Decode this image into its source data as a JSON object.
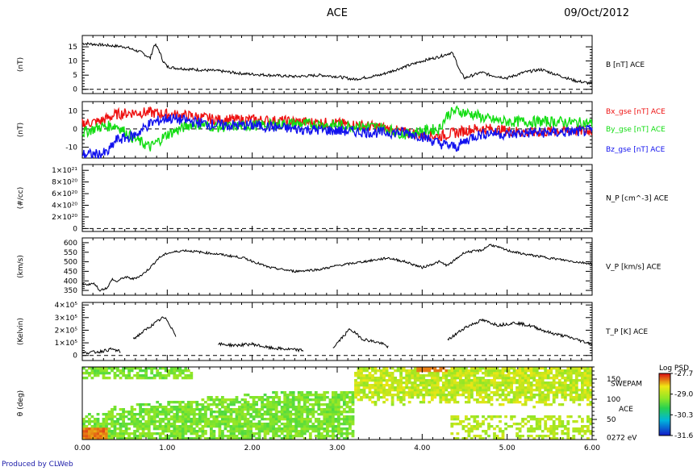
{
  "header": {
    "mission": "ACE",
    "date": "09/Oct/2012"
  },
  "credit": "Produced by CLWeb",
  "colors": {
    "bx": "#ee1111",
    "by": "#11dd11",
    "bz": "#1111ee",
    "trace": "#000000"
  },
  "chart_data": [
    {
      "type": "line",
      "ylabel": "(nT)",
      "right_label": "B [nT] ACE",
      "yticks": [
        "0",
        "5",
        "10",
        "15"
      ],
      "ylim": [
        -1.5,
        19
      ],
      "xlim": [
        0,
        6
      ],
      "dashed_zero": true,
      "series": [
        {
          "x": [
            0,
            0.1,
            0.3,
            0.5,
            0.6,
            0.7,
            0.8,
            0.85,
            0.9,
            0.95,
            1.0,
            1.1,
            1.3,
            1.6,
            1.9,
            2.2,
            2.5,
            2.8,
            3.0,
            3.2,
            3.3,
            3.4,
            3.5,
            3.6,
            3.8,
            4.0,
            4.2,
            4.35,
            4.4,
            4.45,
            4.5,
            4.6,
            4.7,
            4.8,
            5.0,
            5.2,
            5.4,
            5.6,
            5.8,
            6.0
          ],
          "y": [
            16.2,
            16,
            15.5,
            15,
            14,
            13,
            11,
            16,
            14,
            10,
            8,
            7.5,
            7,
            6.5,
            5.5,
            5,
            4.5,
            5,
            4.5,
            3.5,
            4,
            4.5,
            5,
            6,
            8,
            10,
            11.5,
            13,
            10,
            6,
            4,
            5,
            6,
            5,
            4,
            6,
            7,
            5,
            3,
            2
          ]
        }
      ]
    },
    {
      "type": "line",
      "ylabel": "(nT)",
      "yticks": [
        "-10",
        "0",
        "10"
      ],
      "ylim": [
        -16,
        15
      ],
      "xlim": [
        0,
        6
      ],
      "dashed_zero": true,
      "series": [
        {
          "name": "Bx_gse [nT] ACE",
          "color_key": "bx",
          "x": [
            0,
            0.2,
            0.4,
            0.6,
            0.8,
            1.0,
            1.3,
            1.6,
            2.0,
            2.5,
            3.0,
            3.5,
            3.8,
            4.0,
            4.2,
            4.4,
            4.6,
            4.8,
            5.0,
            5.3,
            5.6,
            6.0
          ],
          "y": [
            3,
            4,
            8,
            9,
            9,
            8,
            7,
            5,
            5,
            4,
            3,
            1,
            -2,
            -3,
            -4,
            -2,
            0,
            0,
            -1,
            -2,
            -1,
            -1
          ]
        },
        {
          "name": "By_gse [nT] ACE",
          "color_key": "by",
          "x": [
            0,
            0.2,
            0.4,
            0.6,
            0.8,
            1.0,
            1.3,
            1.6,
            2.0,
            2.5,
            3.0,
            3.5,
            3.8,
            4.0,
            4.2,
            4.3,
            4.4,
            4.6,
            4.8,
            5.0,
            5.3,
            5.6,
            6.0
          ],
          "y": [
            -2,
            1,
            2,
            -5,
            -10,
            -3,
            3,
            1,
            2,
            3,
            2,
            1,
            -3,
            -1,
            0,
            8,
            10,
            8,
            5,
            4,
            4,
            4,
            3
          ]
        },
        {
          "name": "Bz_gse [nT] ACE",
          "color_key": "bz",
          "x": [
            0,
            0.2,
            0.3,
            0.4,
            0.6,
            0.8,
            1.0,
            1.3,
            1.6,
            2.0,
            2.5,
            3.0,
            3.5,
            3.8,
            4.0,
            4.2,
            4.4,
            4.6,
            4.8,
            5.0,
            5.3,
            5.6,
            6.0
          ],
          "y": [
            -14,
            -14,
            -13,
            -6,
            -4,
            3,
            6,
            4,
            2,
            2,
            0,
            -1,
            -2,
            -2,
            -4,
            -8,
            -10,
            -4,
            -2,
            -3,
            -2,
            -2,
            -1
          ]
        }
      ]
    },
    {
      "type": "line",
      "ylabel": "(#/cc)",
      "right_label": "N_P [cm^-3] ACE",
      "yticks": [
        "0",
        "2×10²⁰",
        "4×10²⁰",
        "6×10²⁰",
        "8×10²⁰",
        "1×10²¹"
      ],
      "ylim": [
        -0.5,
        11
      ],
      "xlim": [
        0,
        6
      ],
      "dashed_zero": true,
      "series": []
    },
    {
      "type": "line",
      "ylabel": "(km/s)",
      "right_label": "V_P [km/s] ACE",
      "yticks": [
        "350",
        "400",
        "450",
        "500",
        "550",
        "600"
      ],
      "ylim": [
        325,
        625
      ],
      "xlim": [
        0,
        6
      ],
      "series": [
        {
          "x": [
            0,
            0.15,
            0.2,
            0.3,
            0.35,
            0.4,
            0.5,
            0.6,
            0.7,
            0.8,
            0.9,
            1.0,
            1.2,
            1.4,
            1.6,
            1.9,
            2.2,
            2.5,
            2.8,
            3.0,
            3.3,
            3.6,
            3.8,
            4.0,
            4.2,
            4.3,
            4.5,
            4.7,
            4.8,
            5.0,
            5.2,
            5.5,
            5.8,
            6.0
          ],
          "y": [
            380,
            385,
            350,
            365,
            410,
            395,
            420,
            410,
            430,
            470,
            520,
            545,
            560,
            550,
            540,
            520,
            470,
            450,
            460,
            480,
            500,
            520,
            500,
            470,
            500,
            480,
            550,
            560,
            590,
            560,
            540,
            520,
            500,
            490
          ]
        }
      ]
    },
    {
      "type": "line",
      "ylabel": "(Kelvin)",
      "right_label": "T_P [K] ACE",
      "yticks": [
        "0",
        "1×10⁵",
        "2×10⁵",
        "3×10⁵",
        "4×10⁵"
      ],
      "ylim": [
        -0.4,
        4.2
      ],
      "xlim": [
        0,
        6
      ],
      "dashed_zero": true,
      "series": [
        {
          "x": [
            0,
            0.2,
            0.35,
            0.45
          ],
          "y": [
            0.2,
            0.3,
            0.5,
            0.3
          ]
        },
        {
          "x": [
            0.6,
            0.8,
            0.95,
            1.0,
            1.1
          ],
          "y": [
            1.3,
            2.3,
            3.0,
            2.8,
            1.6
          ]
        },
        {
          "x": [
            1.6,
            1.8,
            2.0,
            2.2,
            2.4,
            2.6
          ],
          "y": [
            0.9,
            0.8,
            0.9,
            0.6,
            0.5,
            0.4
          ]
        },
        {
          "x": [
            2.95,
            3.15,
            3.3,
            3.5,
            3.6
          ],
          "y": [
            0.6,
            2.1,
            1.3,
            1.0,
            0.7
          ]
        },
        {
          "x": [
            4.3,
            4.5,
            4.7,
            4.9,
            5.1,
            5.3,
            5.5,
            5.7,
            6.0
          ],
          "y": [
            1.2,
            2.2,
            2.8,
            2.4,
            2.6,
            2.3,
            1.8,
            1.5,
            0.9
          ]
        }
      ]
    },
    {
      "type": "heatmap",
      "ylabel": "θ (deg)",
      "instrument": "SWEPAM",
      "instrument_sub": "ACE",
      "yticks_right": [
        "0272 eV",
        "50",
        "100",
        "150"
      ],
      "ylim": [
        0,
        180
      ],
      "colorbar": {
        "title": "Log PSD",
        "ticks": [
          "-27.7",
          "-29.0",
          "-30.3",
          "-31.6"
        ],
        "range": [
          -31.6,
          -27.7
        ]
      },
      "xlim": [
        0,
        6
      ]
    }
  ],
  "xticks": [
    "0.00",
    "1.00",
    "2.00",
    "3.00",
    "4.00",
    "5.00",
    "6.00"
  ]
}
